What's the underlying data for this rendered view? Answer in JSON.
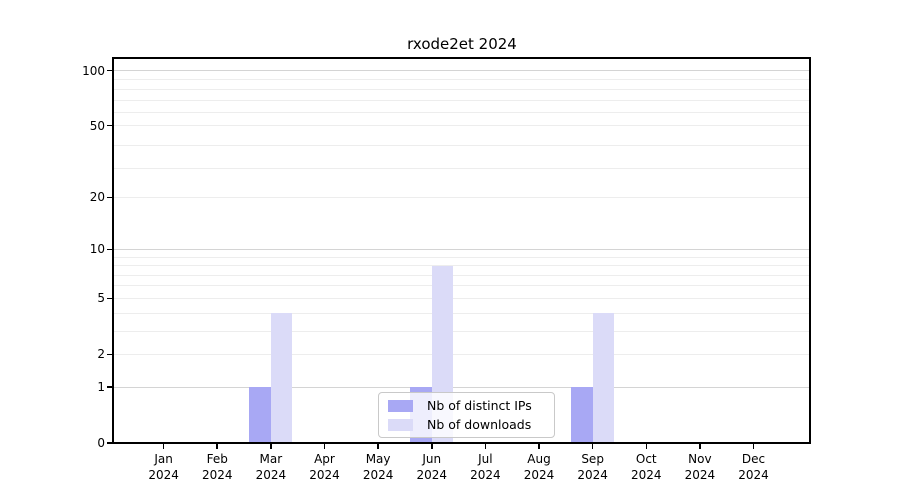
{
  "chart_data": {
    "type": "bar",
    "title": "rxode2et 2024",
    "categories": [
      "Jan 2024",
      "Feb 2024",
      "Mar 2024",
      "Apr 2024",
      "May 2024",
      "Jun 2024",
      "Jul 2024",
      "Aug 2024",
      "Sep 2024",
      "Oct 2024",
      "Nov 2024",
      "Dec 2024"
    ],
    "series": [
      {
        "name": "Nb of distinct IPs",
        "color": "#a8a8f4",
        "values": [
          0,
          0,
          1,
          0,
          0,
          1,
          0,
          0,
          1,
          0,
          0,
          0
        ]
      },
      {
        "name": "Nb of downloads",
        "color": "#dbdbf8",
        "values": [
          0,
          0,
          4,
          0,
          0,
          8,
          0,
          0,
          4,
          0,
          0,
          0
        ]
      }
    ],
    "xlabel": "",
    "ylabel": "",
    "y_axis": {
      "scale": "log10(1+y)",
      "tick_values": [
        0,
        1,
        2,
        5,
        10,
        20,
        50,
        100
      ],
      "ylim": [
        0,
        117
      ]
    },
    "gridlines": {
      "decade_values": [
        1,
        10,
        100
      ],
      "minor_values": [
        2,
        3,
        4,
        5,
        6,
        7,
        8,
        9,
        20,
        29,
        39,
        50,
        59,
        69,
        79,
        89
      ],
      "decade_color": "#d4d4d4",
      "minor_color": "#ededed"
    },
    "legend": {
      "position": "bottom-center"
    }
  }
}
